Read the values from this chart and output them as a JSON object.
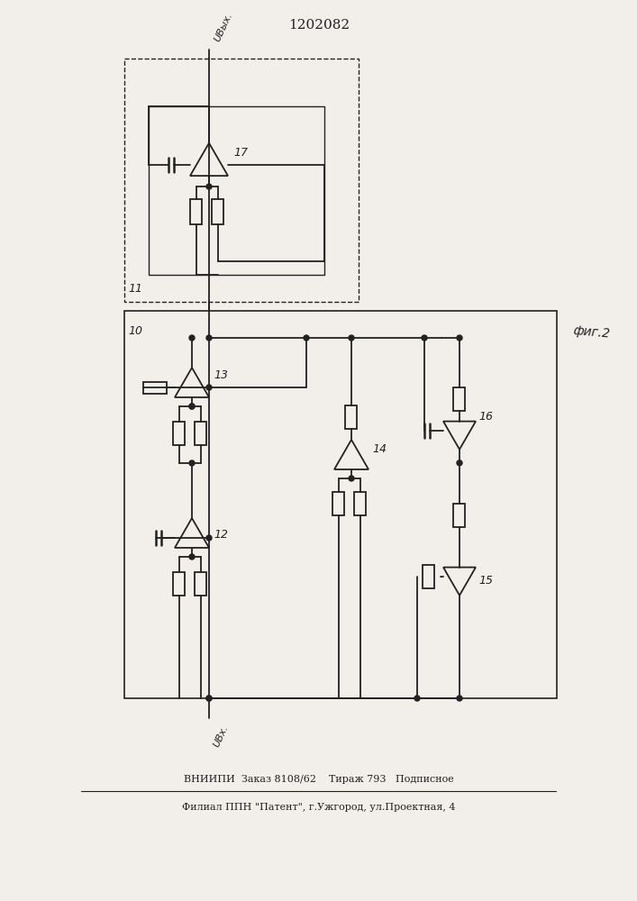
{
  "title": "1202082",
  "fig2_label": "фиг.2",
  "label_11": "11",
  "label_10": "10",
  "label_12": "12",
  "label_13": "13",
  "label_14": "14",
  "label_15": "15",
  "label_16": "16",
  "label_17": "17",
  "label_Uvyx": "UВых.",
  "label_Uvx": "UВх.",
  "footer1": "ВНИИПИ  Заказ 8108/62    Тираж 793   Подписное",
  "footer2": "Филиал ППН \"Патент\", г.Ужгород, ул.Проектная, 4",
  "bg_color": "#f2efeb",
  "line_color": "#222222"
}
